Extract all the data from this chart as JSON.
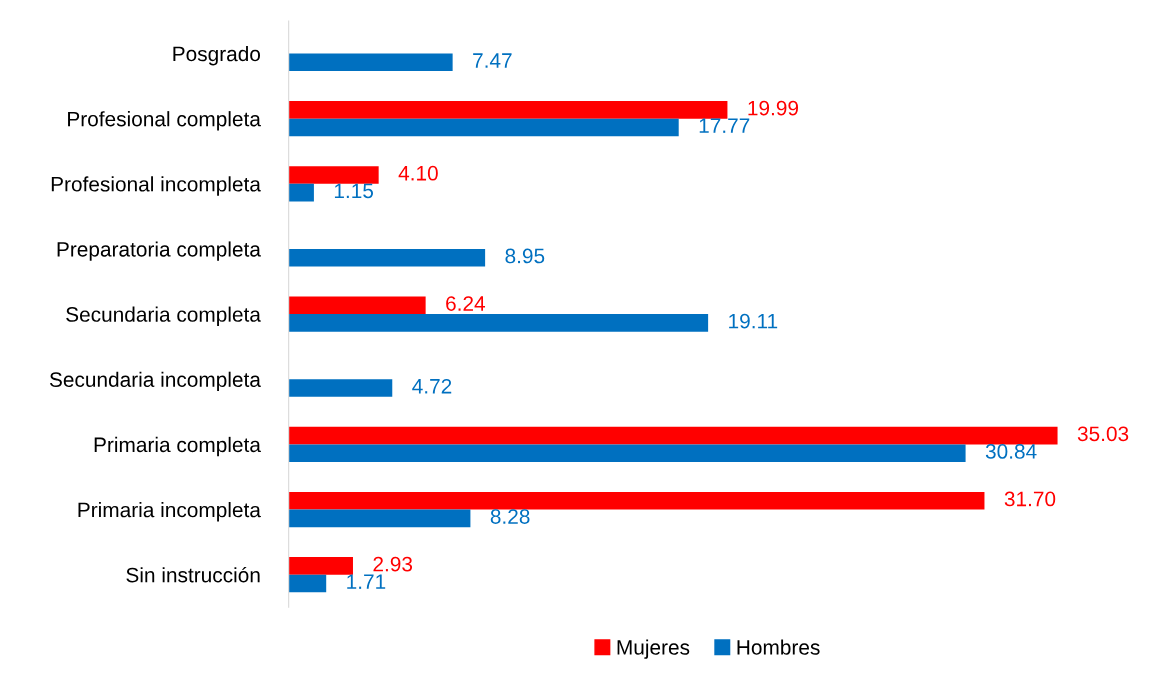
{
  "chart_data": {
    "type": "bar",
    "orientation": "horizontal",
    "categories": [
      "Posgrado",
      "Profesional completa",
      "Profesional incompleta",
      "Preparatoria completa",
      "Secundaria completa",
      "Secundaria incompleta",
      "Primaria completa",
      "Primaria incompleta",
      "Sin instrucción"
    ],
    "series": [
      {
        "name": "Mujeres",
        "color": "#ff0000",
        "values": [
          null,
          19.99,
          4.1,
          null,
          6.24,
          null,
          35.03,
          31.7,
          2.93
        ],
        "value_labels": [
          null,
          "19.99",
          "4.10",
          null,
          "6.24",
          null,
          "35.03",
          "31.70",
          "2.93"
        ]
      },
      {
        "name": "Hombres",
        "color": "#0070c0",
        "values": [
          7.47,
          17.77,
          1.15,
          8.95,
          19.11,
          4.72,
          30.84,
          8.28,
          1.71
        ],
        "value_labels": [
          "7.47",
          "17.77",
          "1.15",
          "8.95",
          "19.11",
          "4.72",
          "30.84",
          "8.28",
          "1.71"
        ]
      }
    ],
    "legend": "bottom",
    "grid": false
  }
}
